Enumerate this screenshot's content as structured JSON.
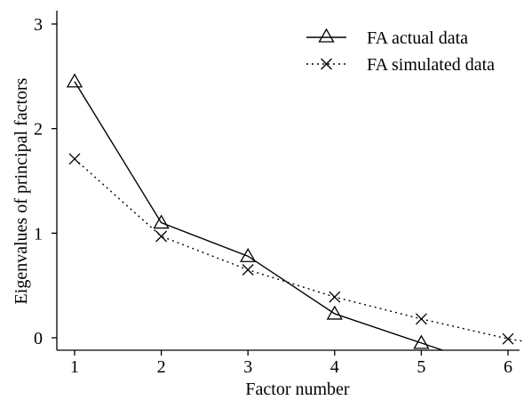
{
  "chart_data": {
    "type": "line",
    "xlabel": "Factor number",
    "ylabel": "Eigenvalues of principal factors",
    "xlim": [
      0.75,
      6.3
    ],
    "ylim": [
      -0.12,
      3.1
    ],
    "x_ticks": [
      "1",
      "2",
      "3",
      "4",
      "5",
      "6"
    ],
    "y_ticks": [
      "0",
      "1",
      "2",
      "3"
    ],
    "legend_position": "top-right",
    "series": [
      {
        "name": "FA actual data",
        "style": "solid",
        "marker": "triangle",
        "x": [
          1,
          2,
          3,
          4,
          5,
          5.25
        ],
        "y": [
          2.45,
          1.1,
          0.78,
          0.23,
          -0.05,
          -0.12
        ],
        "marker_count": 5
      },
      {
        "name": "FA simulated data",
        "style": "dotted",
        "marker": "x",
        "x": [
          1,
          2,
          3,
          4,
          5,
          6,
          6.3
        ],
        "y": [
          1.71,
          0.97,
          0.65,
          0.39,
          0.18,
          -0.01,
          -0.05
        ],
        "marker_count": 6
      }
    ]
  }
}
